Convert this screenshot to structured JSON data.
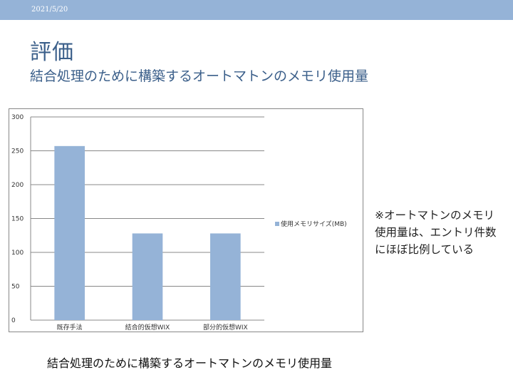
{
  "header": {
    "date": "2021/5/20",
    "title": "評価",
    "subtitle": "結合処理のために構築するオートマトンのメモリ使用量"
  },
  "note": {
    "lines": [
      "※オートマトンのメモリ",
      "使用量は、エントリ件数",
      "にほぼ比例している"
    ]
  },
  "caption": "結合処理のために構築するオートマトンのメモリ使用量",
  "colors": {
    "bar": "#95b3d7",
    "grid": "#888888",
    "topbar": "#95b3d7"
  },
  "chart_data": {
    "type": "bar",
    "categories": [
      "既存手法",
      "結合的仮想WIX",
      "部分的仮想WIX"
    ],
    "series": [
      {
        "name": "使用メモリサイズ(MB)",
        "values": [
          257,
          128,
          128
        ]
      }
    ],
    "ylim": [
      0,
      300
    ],
    "yticks": [
      0,
      50,
      100,
      150,
      200,
      250,
      300
    ],
    "grid": true,
    "legend": "right"
  }
}
